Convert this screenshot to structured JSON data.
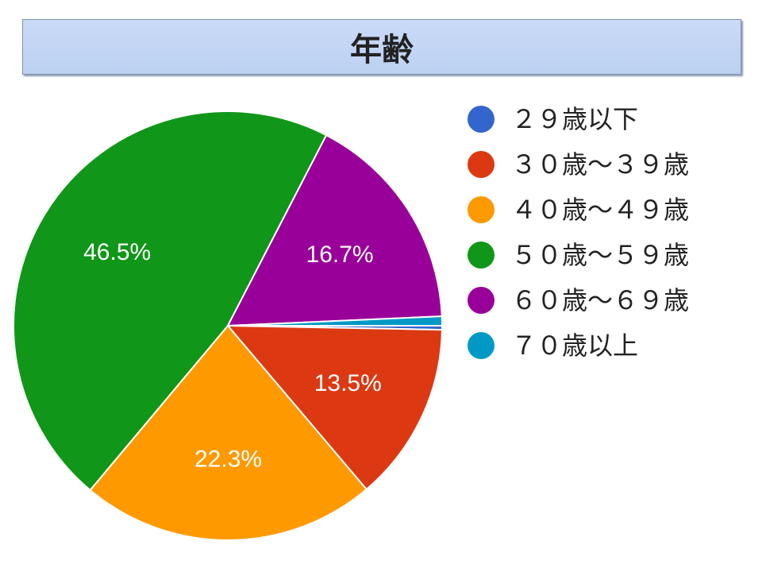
{
  "chart_data": {
    "type": "pie",
    "title": "年齢",
    "legend_position": "right",
    "slices": [
      {
        "label": "２９歳以下",
        "value": 0.3,
        "color": "#3366cc",
        "show_label": false
      },
      {
        "label": "３０歳～３９歳",
        "value": 13.5,
        "color": "#dc3912",
        "show_label": true,
        "data_label": "13.5%"
      },
      {
        "label": "４０歳～４９歳",
        "value": 22.3,
        "color": "#ff9900",
        "show_label": true,
        "data_label": "22.3%"
      },
      {
        "label": "５０歳～５９歳",
        "value": 46.5,
        "color": "#109618",
        "show_label": true,
        "data_label": "46.5%"
      },
      {
        "label": "６０歳～６９歳",
        "value": 16.7,
        "color": "#990099",
        "show_label": true,
        "data_label": "16.7%"
      },
      {
        "label": "７０歳以上",
        "value": 0.7,
        "color": "#0099c6",
        "show_label": false
      }
    ]
  }
}
